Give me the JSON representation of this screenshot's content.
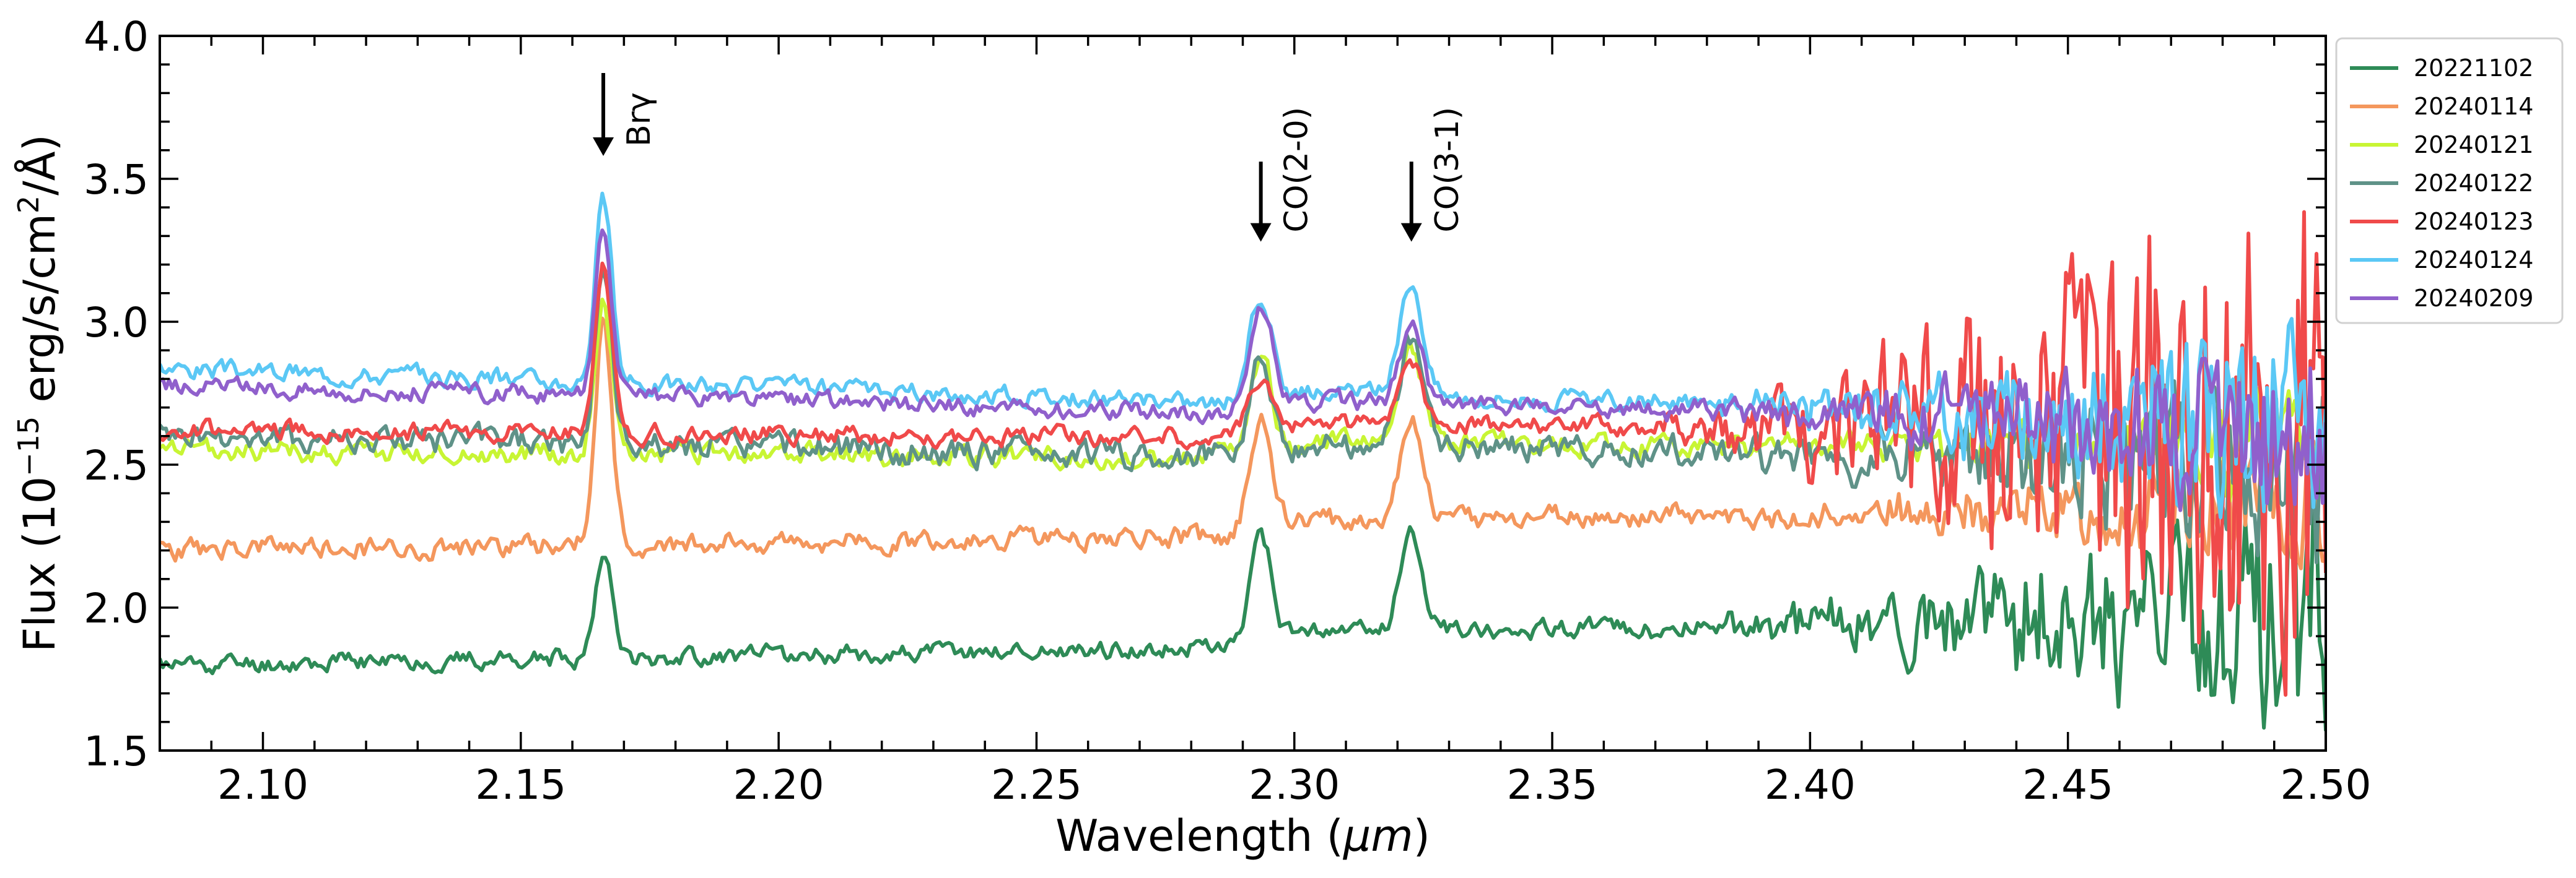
{
  "chart_data": {
    "type": "line",
    "title": "",
    "xlabel_main": "Wavelength (",
    "xlabel_unit": "μm",
    "xlabel_close": ")",
    "ylabel_main": "Flux (10",
    "ylabel_exp": "−15",
    "ylabel_units": " erg/s/cm",
    "ylabel_sq": "2",
    "ylabel_tail": "/Å)",
    "xlim": [
      2.08,
      2.5
    ],
    "ylim": [
      1.5,
      4.0
    ],
    "xticks": [
      2.1,
      2.15,
      2.2,
      2.25,
      2.3,
      2.35,
      2.4,
      2.45,
      2.5
    ],
    "xtick_labels": [
      "2.10",
      "2.15",
      "2.20",
      "2.25",
      "2.30",
      "2.35",
      "2.40",
      "2.45",
      "2.50"
    ],
    "yticks": [
      1.5,
      2.0,
      2.5,
      3.0,
      3.5,
      4.0
    ],
    "ytick_labels": [
      "1.5",
      "2.0",
      "2.5",
      "3.0",
      "3.5",
      "4.0"
    ],
    "legend_position": "top-right, outside axes",
    "annotations": [
      {
        "label": "Brγ",
        "x": 2.166,
        "y_top": 3.87,
        "y_tip": 3.58
      },
      {
        "label": "CO(2-0)",
        "x": 2.2935,
        "y_top": 3.56,
        "y_tip": 3.28
      },
      {
        "label": "CO(3-1)",
        "x": 2.3227,
        "y_top": 3.56,
        "y_tip": 3.28
      }
    ],
    "series": [
      {
        "name": "20221102",
        "color": "#2e8b57",
        "base": 1.8,
        "slope": 0.12,
        "noise": 0.03,
        "late": 0.2,
        "amp": [
          0.38,
          0.38,
          0.35
        ],
        "seed": 11
      },
      {
        "name": "20240114",
        "color": "#f4975d",
        "base": 2.2,
        "slope": 0.1,
        "noise": 0.035,
        "late": 0.1,
        "amp": [
          0.78,
          0.42,
          0.36
        ],
        "seed": 23
      },
      {
        "name": "20240121",
        "color": "#c8f534",
        "base": 2.55,
        "slope": -0.05,
        "noise": 0.035,
        "late": 0.08,
        "amp": [
          0.55,
          0.35,
          0.33
        ],
        "seed": 37
      },
      {
        "name": "20240122",
        "color": "#5f9288",
        "base": 2.6,
        "slope": -0.15,
        "noise": 0.045,
        "late": 0.18,
        "amp": [
          0.62,
          0.35,
          0.38
        ],
        "seed": 41
      },
      {
        "name": "20240123",
        "color": "#f04a4a",
        "base": 2.62,
        "slope": -0.05,
        "noise": 0.03,
        "late": 0.5,
        "amp": [
          0.58,
          0.22,
          0.22
        ],
        "seed": 53
      },
      {
        "name": "20240124",
        "color": "#5bc8f5",
        "base": 2.84,
        "slope": -0.25,
        "noise": 0.03,
        "late": 0.18,
        "amp": [
          0.64,
          0.38,
          0.4
        ],
        "seed": 67
      },
      {
        "name": "20240209",
        "color": "#9060cc",
        "base": 2.78,
        "slope": -0.2,
        "noise": 0.03,
        "late": 0.16,
        "amp": [
          0.6,
          0.38,
          0.26
        ],
        "seed": 79
      }
    ]
  }
}
